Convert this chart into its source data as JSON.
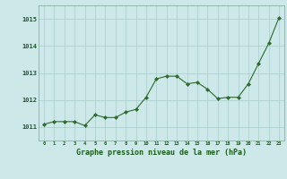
{
  "x": [
    0,
    1,
    2,
    3,
    4,
    5,
    6,
    7,
    8,
    9,
    10,
    11,
    12,
    13,
    14,
    15,
    16,
    17,
    18,
    19,
    20,
    21,
    22,
    23
  ],
  "y": [
    1011.1,
    1011.2,
    1011.2,
    1011.2,
    1011.05,
    1011.45,
    1011.35,
    1011.35,
    1011.55,
    1011.65,
    1012.1,
    1012.78,
    1012.88,
    1012.88,
    1012.6,
    1012.65,
    1012.4,
    1012.05,
    1012.1,
    1012.1,
    1012.6,
    1013.35,
    1014.1,
    1015.05
  ],
  "line_color": "#2d6a2d",
  "marker_color": "#2d6a2d",
  "bg_color": "#cce8e8",
  "grid_color": "#aacaca",
  "xlabel": "Graphe pression niveau de la mer (hPa)",
  "xlabel_color": "#1a5c1a",
  "tick_label_color": "#1a5c1a",
  "xlim": [
    -0.5,
    23.5
  ],
  "ylim": [
    1010.5,
    1015.5
  ],
  "yticks": [
    1011,
    1012,
    1013,
    1014,
    1015
  ],
  "xticks": [
    0,
    1,
    2,
    3,
    4,
    5,
    6,
    7,
    8,
    9,
    10,
    11,
    12,
    13,
    14,
    15,
    16,
    17,
    18,
    19,
    20,
    21,
    22,
    23
  ]
}
